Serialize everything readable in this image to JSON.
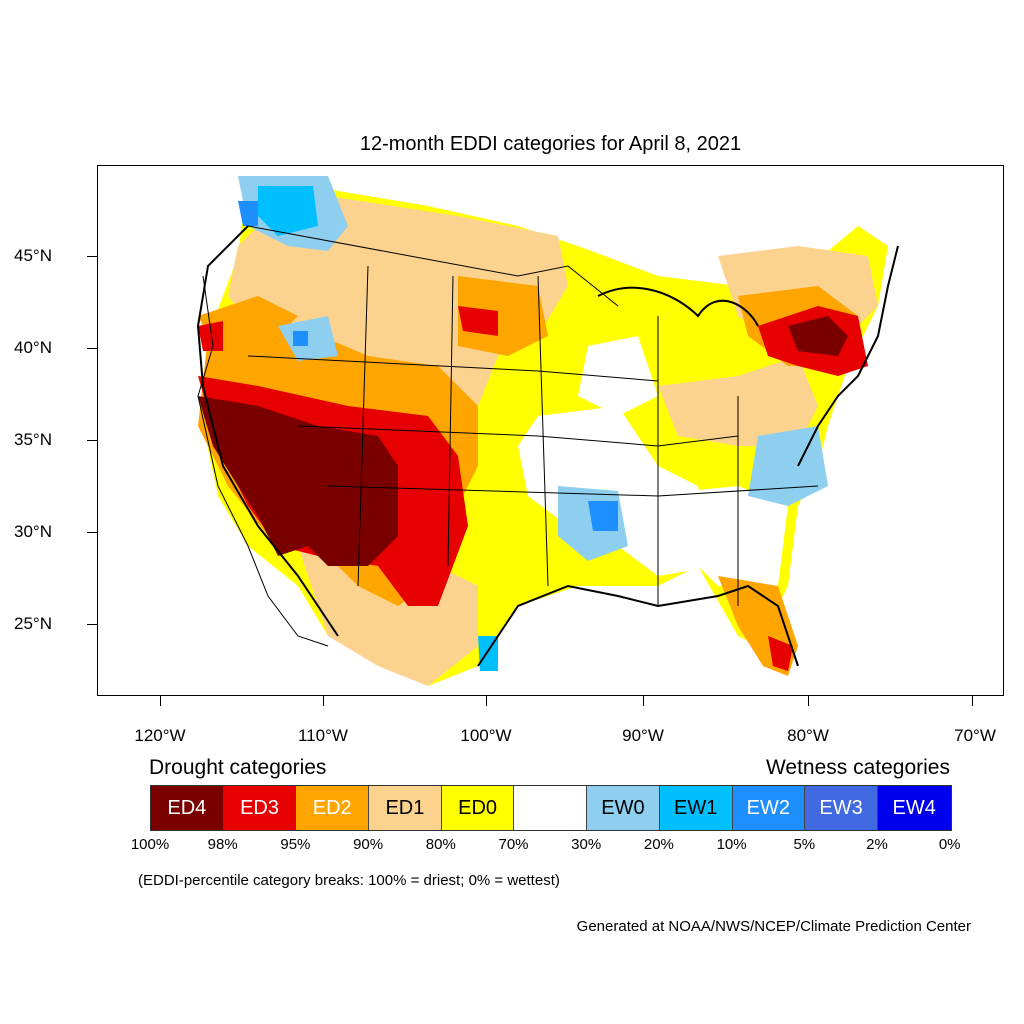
{
  "title": "12-month EDDI categories for April 8, 2021",
  "lat_labels": [
    "45°N",
    "40°N",
    "35°N",
    "30°N",
    "25°N"
  ],
  "lon_labels": [
    "120°W",
    "110°W",
    "100°W",
    "90°W",
    "80°W",
    "70°W"
  ],
  "legend": {
    "drought_heading": "Drought categories",
    "wetness_heading": "Wetness categories",
    "categories": [
      {
        "label": "ED4",
        "color": "#7a0000",
        "text_color": "#ffffff"
      },
      {
        "label": "ED3",
        "color": "#e60000",
        "text_color": "#ffffff"
      },
      {
        "label": "ED2",
        "color": "#ffa500",
        "text_color": "#ffffff"
      },
      {
        "label": "ED1",
        "color": "#fcd38e",
        "text_color": "#000000"
      },
      {
        "label": "ED0",
        "color": "#ffff00",
        "text_color": "#000000"
      },
      {
        "label": "",
        "color": "#ffffff",
        "text_color": "#000000"
      },
      {
        "label": "EW0",
        "color": "#8ecff0",
        "text_color": "#000000"
      },
      {
        "label": "EW1",
        "color": "#00bfff",
        "text_color": "#000000"
      },
      {
        "label": "EW2",
        "color": "#1e8fff",
        "text_color": "#ffffff"
      },
      {
        "label": "EW3",
        "color": "#4169e1",
        "text_color": "#ffffff"
      },
      {
        "label": "EW4",
        "color": "#0000ee",
        "text_color": "#ffffff"
      }
    ],
    "percent_breaks": [
      "100%",
      "98%",
      "95%",
      "90%",
      "80%",
      "70%",
      "30%",
      "20%",
      "10%",
      "5%",
      "2%",
      "0%"
    ]
  },
  "note": "(EDDI-percentile category breaks: 100% = driest; 0% = wettest)",
  "credit": "Generated at NOAA/NWS/NCEP/Climate Prediction Center"
}
